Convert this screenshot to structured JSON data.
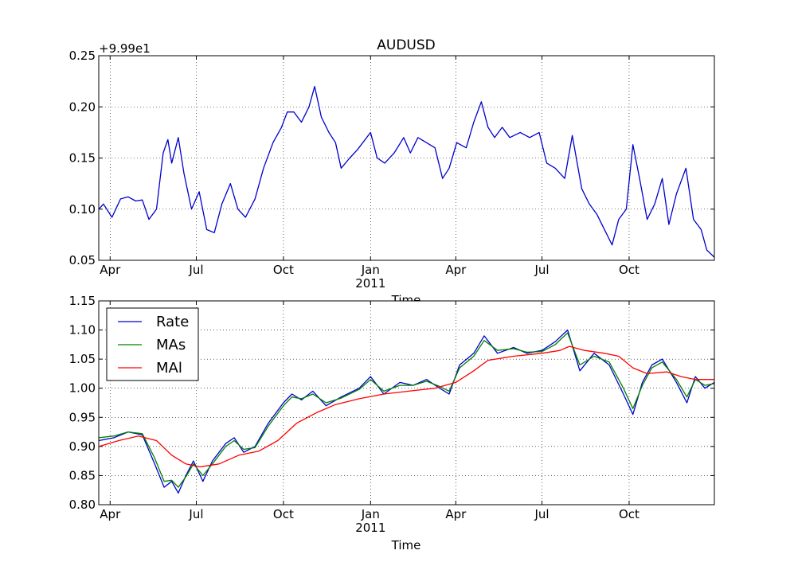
{
  "chart_data": [
    {
      "type": "line",
      "title": "AUDUSD",
      "offset_label": "+9.99e1",
      "xlabel": "Time",
      "ylabel": "",
      "ylim": [
        0.05,
        0.25
      ],
      "yticks": [
        "0.05",
        "0.10",
        "0.15",
        "0.20",
        "0.25"
      ],
      "xlim": [
        "2010-03-20",
        "2011-12-30"
      ],
      "xticks": [
        {
          "date": "2010-04-01",
          "label": "Apr"
        },
        {
          "date": "2010-07-01",
          "label": "Jul"
        },
        {
          "date": "2010-10-01",
          "label": "Oct"
        },
        {
          "date": "2011-01-01",
          "label": "Jan"
        },
        {
          "date": "2011-04-01",
          "label": "Apr"
        },
        {
          "date": "2011-07-01",
          "label": "Jul"
        },
        {
          "date": "2011-10-01",
          "label": "Oct"
        }
      ],
      "year_label": {
        "date": "2011-01-01",
        "label": "2011"
      },
      "grid": true,
      "series": [
        {
          "color": "#0000cc",
          "points": [
            [
              "2010-03-20",
              0.1
            ],
            [
              "2010-03-25",
              0.105
            ],
            [
              "2010-04-03",
              0.092
            ],
            [
              "2010-04-12",
              0.11
            ],
            [
              "2010-04-20",
              0.112
            ],
            [
              "2010-04-28",
              0.108
            ],
            [
              "2010-05-05",
              0.109
            ],
            [
              "2010-05-12",
              0.09
            ],
            [
              "2010-05-20",
              0.1
            ],
            [
              "2010-05-27",
              0.155
            ],
            [
              "2010-06-01",
              0.168
            ],
            [
              "2010-06-05",
              0.145
            ],
            [
              "2010-06-12",
              0.17
            ],
            [
              "2010-06-18",
              0.135
            ],
            [
              "2010-06-26",
              0.1
            ],
            [
              "2010-07-04",
              0.117
            ],
            [
              "2010-07-12",
              0.08
            ],
            [
              "2010-07-20",
              0.077
            ],
            [
              "2010-07-28",
              0.105
            ],
            [
              "2010-08-06",
              0.125
            ],
            [
              "2010-08-14",
              0.1
            ],
            [
              "2010-08-22",
              0.092
            ],
            [
              "2010-09-01",
              0.11
            ],
            [
              "2010-09-10",
              0.14
            ],
            [
              "2010-09-20",
              0.165
            ],
            [
              "2010-09-29",
              0.18
            ],
            [
              "2010-10-05",
              0.195
            ],
            [
              "2010-10-12",
              0.195
            ],
            [
              "2010-10-20",
              0.185
            ],
            [
              "2010-10-28",
              0.2
            ],
            [
              "2010-11-03",
              0.22
            ],
            [
              "2010-11-10",
              0.19
            ],
            [
              "2010-11-18",
              0.175
            ],
            [
              "2010-11-25",
              0.165
            ],
            [
              "2010-12-01",
              0.14
            ],
            [
              "2010-12-10",
              0.15
            ],
            [
              "2010-12-18",
              0.158
            ],
            [
              "2011-01-01",
              0.175
            ],
            [
              "2011-01-08",
              0.15
            ],
            [
              "2011-01-16",
              0.145
            ],
            [
              "2011-01-26",
              0.155
            ],
            [
              "2011-02-05",
              0.17
            ],
            [
              "2011-02-12",
              0.155
            ],
            [
              "2011-02-20",
              0.17
            ],
            [
              "2011-03-01",
              0.165
            ],
            [
              "2011-03-10",
              0.16
            ],
            [
              "2011-03-18",
              0.13
            ],
            [
              "2011-03-25",
              0.14
            ],
            [
              "2011-04-02",
              0.165
            ],
            [
              "2011-04-12",
              0.16
            ],
            [
              "2011-04-20",
              0.185
            ],
            [
              "2011-04-28",
              0.205
            ],
            [
              "2011-05-05",
              0.18
            ],
            [
              "2011-05-12",
              0.17
            ],
            [
              "2011-05-20",
              0.18
            ],
            [
              "2011-05-28",
              0.17
            ],
            [
              "2011-06-08",
              0.175
            ],
            [
              "2011-06-18",
              0.17
            ],
            [
              "2011-06-28",
              0.175
            ],
            [
              "2011-07-06",
              0.145
            ],
            [
              "2011-07-15",
              0.14
            ],
            [
              "2011-07-25",
              0.13
            ],
            [
              "2011-08-02",
              0.172
            ],
            [
              "2011-08-12",
              0.12
            ],
            [
              "2011-08-20",
              0.105
            ],
            [
              "2011-08-28",
              0.095
            ],
            [
              "2011-09-05",
              0.08
            ],
            [
              "2011-09-13",
              0.065
            ],
            [
              "2011-09-20",
              0.09
            ],
            [
              "2011-09-28",
              0.1
            ],
            [
              "2011-10-05",
              0.163
            ],
            [
              "2011-10-12",
              0.13
            ],
            [
              "2011-10-20",
              0.09
            ],
            [
              "2011-10-28",
              0.105
            ],
            [
              "2011-11-05",
              0.13
            ],
            [
              "2011-11-12",
              0.085
            ],
            [
              "2011-11-20",
              0.115
            ],
            [
              "2011-11-30",
              0.14
            ],
            [
              "2011-12-08",
              0.09
            ],
            [
              "2011-12-16",
              0.08
            ],
            [
              "2011-12-22",
              0.06
            ],
            [
              "2011-12-30",
              0.053
            ]
          ]
        }
      ]
    },
    {
      "type": "line",
      "title": "",
      "xlabel": "Time",
      "ylabel": "",
      "ylim": [
        0.8,
        1.15
      ],
      "yticks": [
        "0.80",
        "0.85",
        "0.90",
        "0.95",
        "1.00",
        "1.05",
        "1.10",
        "1.15"
      ],
      "xlim": [
        "2010-03-20",
        "2011-12-30"
      ],
      "xticks": [
        {
          "date": "2010-04-01",
          "label": "Apr"
        },
        {
          "date": "2010-07-01",
          "label": "Jul"
        },
        {
          "date": "2010-10-01",
          "label": "Oct"
        },
        {
          "date": "2011-01-01",
          "label": "Jan"
        },
        {
          "date": "2011-04-01",
          "label": "Apr"
        },
        {
          "date": "2011-07-01",
          "label": "Jul"
        },
        {
          "date": "2011-10-01",
          "label": "Oct"
        }
      ],
      "year_label": {
        "date": "2011-01-01",
        "label": "2011"
      },
      "grid": true,
      "legend": "upper-left",
      "series": [
        {
          "name": "Rate",
          "color": "#0000cc",
          "points": [
            [
              "2010-03-20",
              0.91
            ],
            [
              "2010-04-05",
              0.915
            ],
            [
              "2010-04-20",
              0.925
            ],
            [
              "2010-05-05",
              0.92
            ],
            [
              "2010-05-18",
              0.87
            ],
            [
              "2010-05-28",
              0.83
            ],
            [
              "2010-06-05",
              0.84
            ],
            [
              "2010-06-12",
              0.82
            ],
            [
              "2010-06-20",
              0.85
            ],
            [
              "2010-06-28",
              0.875
            ],
            [
              "2010-07-08",
              0.84
            ],
            [
              "2010-07-18",
              0.875
            ],
            [
              "2010-08-01",
              0.905
            ],
            [
              "2010-08-10",
              0.915
            ],
            [
              "2010-08-20",
              0.89
            ],
            [
              "2010-09-01",
              0.9
            ],
            [
              "2010-09-15",
              0.94
            ],
            [
              "2010-10-01",
              0.975
            ],
            [
              "2010-10-10",
              0.99
            ],
            [
              "2010-10-20",
              0.98
            ],
            [
              "2010-11-01",
              0.995
            ],
            [
              "2010-11-15",
              0.97
            ],
            [
              "2010-12-01",
              0.985
            ],
            [
              "2010-12-20",
              1.0
            ],
            [
              "2011-01-01",
              1.02
            ],
            [
              "2011-01-15",
              0.99
            ],
            [
              "2011-02-01",
              1.01
            ],
            [
              "2011-02-15",
              1.005
            ],
            [
              "2011-03-01",
              1.015
            ],
            [
              "2011-03-15",
              1.0
            ],
            [
              "2011-03-25",
              0.99
            ],
            [
              "2011-04-05",
              1.04
            ],
            [
              "2011-04-20",
              1.06
            ],
            [
              "2011-05-01",
              1.09
            ],
            [
              "2011-05-15",
              1.06
            ],
            [
              "2011-06-01",
              1.07
            ],
            [
              "2011-06-15",
              1.06
            ],
            [
              "2011-07-01",
              1.065
            ],
            [
              "2011-07-15",
              1.08
            ],
            [
              "2011-07-28",
              1.1
            ],
            [
              "2011-08-10",
              1.03
            ],
            [
              "2011-08-25",
              1.06
            ],
            [
              "2011-09-10",
              1.04
            ],
            [
              "2011-09-25",
              0.99
            ],
            [
              "2011-10-05",
              0.955
            ],
            [
              "2011-10-15",
              1.01
            ],
            [
              "2011-10-25",
              1.04
            ],
            [
              "2011-11-05",
              1.05
            ],
            [
              "2011-11-20",
              1.01
            ],
            [
              "2011-12-01",
              0.975
            ],
            [
              "2011-12-10",
              1.02
            ],
            [
              "2011-12-20",
              1.0
            ],
            [
              "2011-12-30",
              1.01
            ]
          ]
        },
        {
          "name": "MAs",
          "color": "#008000",
          "points": [
            [
              "2010-03-20",
              0.915
            ],
            [
              "2010-04-05",
              0.918
            ],
            [
              "2010-04-20",
              0.925
            ],
            [
              "2010-05-05",
              0.922
            ],
            [
              "2010-05-18",
              0.88
            ],
            [
              "2010-05-28",
              0.84
            ],
            [
              "2010-06-05",
              0.842
            ],
            [
              "2010-06-12",
              0.83
            ],
            [
              "2010-06-20",
              0.848
            ],
            [
              "2010-06-28",
              0.87
            ],
            [
              "2010-07-08",
              0.85
            ],
            [
              "2010-07-18",
              0.87
            ],
            [
              "2010-08-01",
              0.9
            ],
            [
              "2010-08-10",
              0.91
            ],
            [
              "2010-08-20",
              0.895
            ],
            [
              "2010-09-01",
              0.898
            ],
            [
              "2010-09-15",
              0.935
            ],
            [
              "2010-10-01",
              0.97
            ],
            [
              "2010-10-10",
              0.985
            ],
            [
              "2010-10-20",
              0.982
            ],
            [
              "2010-11-01",
              0.99
            ],
            [
              "2010-11-15",
              0.975
            ],
            [
              "2010-12-01",
              0.983
            ],
            [
              "2010-12-20",
              0.998
            ],
            [
              "2011-01-01",
              1.015
            ],
            [
              "2011-01-15",
              0.995
            ],
            [
              "2011-02-01",
              1.005
            ],
            [
              "2011-02-15",
              1.005
            ],
            [
              "2011-03-01",
              1.012
            ],
            [
              "2011-03-15",
              1.003
            ],
            [
              "2011-03-25",
              0.995
            ],
            [
              "2011-04-05",
              1.035
            ],
            [
              "2011-04-20",
              1.055
            ],
            [
              "2011-05-01",
              1.082
            ],
            [
              "2011-05-15",
              1.065
            ],
            [
              "2011-06-01",
              1.068
            ],
            [
              "2011-06-15",
              1.062
            ],
            [
              "2011-07-01",
              1.063
            ],
            [
              "2011-07-15",
              1.075
            ],
            [
              "2011-07-28",
              1.095
            ],
            [
              "2011-08-10",
              1.04
            ],
            [
              "2011-08-25",
              1.055
            ],
            [
              "2011-09-10",
              1.045
            ],
            [
              "2011-09-25",
              1.0
            ],
            [
              "2011-10-05",
              0.965
            ],
            [
              "2011-10-15",
              1.005
            ],
            [
              "2011-10-25",
              1.035
            ],
            [
              "2011-11-05",
              1.045
            ],
            [
              "2011-11-20",
              1.015
            ],
            [
              "2011-12-01",
              0.985
            ],
            [
              "2011-12-10",
              1.015
            ],
            [
              "2011-12-20",
              1.005
            ],
            [
              "2011-12-30",
              1.008
            ]
          ]
        },
        {
          "name": "MAl",
          "color": "#ff0000",
          "points": [
            [
              "2010-03-20",
              0.9
            ],
            [
              "2010-04-10",
              0.91
            ],
            [
              "2010-05-01",
              0.918
            ],
            [
              "2010-05-20",
              0.91
            ],
            [
              "2010-06-05",
              0.885
            ],
            [
              "2010-06-20",
              0.87
            ],
            [
              "2010-07-05",
              0.865
            ],
            [
              "2010-07-25",
              0.87
            ],
            [
              "2010-08-15",
              0.885
            ],
            [
              "2010-09-05",
              0.892
            ],
            [
              "2010-09-25",
              0.91
            ],
            [
              "2010-10-15",
              0.94
            ],
            [
              "2010-11-05",
              0.958
            ],
            [
              "2010-11-25",
              0.972
            ],
            [
              "2010-12-20",
              0.982
            ],
            [
              "2011-01-15",
              0.99
            ],
            [
              "2011-02-10",
              0.995
            ],
            [
              "2011-03-10",
              1.0
            ],
            [
              "2011-04-01",
              1.01
            ],
            [
              "2011-04-20",
              1.03
            ],
            [
              "2011-05-05",
              1.048
            ],
            [
              "2011-06-01",
              1.055
            ],
            [
              "2011-07-01",
              1.06
            ],
            [
              "2011-07-20",
              1.065
            ],
            [
              "2011-07-30",
              1.072
            ],
            [
              "2011-08-15",
              1.065
            ],
            [
              "2011-09-05",
              1.06
            ],
            [
              "2011-09-20",
              1.055
            ],
            [
              "2011-10-05",
              1.035
            ],
            [
              "2011-10-20",
              1.025
            ],
            [
              "2011-11-10",
              1.028
            ],
            [
              "2011-11-25",
              1.02
            ],
            [
              "2011-12-10",
              1.015
            ],
            [
              "2011-12-30",
              1.015
            ]
          ]
        }
      ]
    }
  ]
}
